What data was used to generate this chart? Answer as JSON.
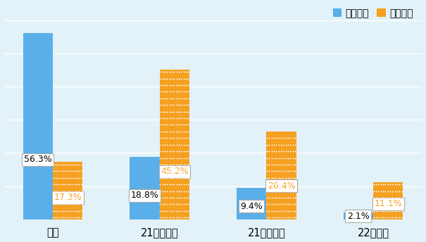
{
  "categories": [
    "年内",
    "21年上半期",
    "21年下半期",
    "22年以降"
  ],
  "brazil_values": [
    56.3,
    18.8,
    9.4,
    2.1
  ],
  "mexico_values": [
    17.3,
    45.2,
    26.4,
    11.1
  ],
  "brazil_color": "#5aafe8",
  "mexico_color": "#f5a020",
  "background_color": "#e2f2f8",
  "legend_brazil": "ブラジル",
  "legend_mexico": "メキシコ",
  "ylim": [
    0,
    65
  ],
  "bar_width": 0.28,
  "label_fontsize": 9.0,
  "tick_fontsize": 10.5,
  "legend_fontsize": 10.0
}
